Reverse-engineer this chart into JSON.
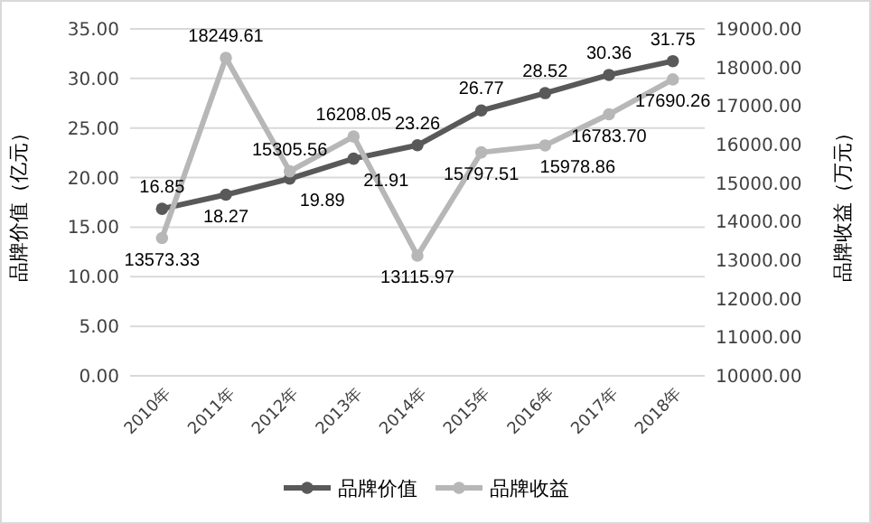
{
  "chart_data": {
    "type": "line",
    "categories": [
      "2010年",
      "2011年",
      "2012年",
      "2013年",
      "2014年",
      "2015年",
      "2016年",
      "2017年",
      "2018年"
    ],
    "series": [
      {
        "name": "品牌价值",
        "color": "#595959",
        "values": [
          16.85,
          18.27,
          19.89,
          21.91,
          23.26,
          26.77,
          28.52,
          30.36,
          31.75
        ]
      },
      {
        "name": "品牌收益",
        "color": "#b7b7b7",
        "axis": "y2",
        "values": [
          13573.33,
          18249.61,
          15305.56,
          16208.05,
          13115.97,
          15797.51,
          15978.86,
          16783.7,
          17690.26
        ],
        "value_labels": [
          "13573.33",
          "18249.61",
          "15305.56",
          "16208.05",
          "13115.97",
          "15797.51",
          "15978.86",
          "16783.70",
          "17690.26"
        ]
      }
    ],
    "ylabel": "品牌价值（亿元）",
    "y2label": "品牌收益（万元）",
    "ylim": [
      0,
      35
    ],
    "yticks": [
      {
        "value": 0,
        "label": "0.00"
      },
      {
        "value": 5,
        "label": "5.00"
      },
      {
        "value": 10,
        "label": "10.00"
      },
      {
        "value": 15,
        "label": "15.00"
      },
      {
        "value": 20,
        "label": "20.00"
      },
      {
        "value": 25,
        "label": "25.00"
      },
      {
        "value": 30,
        "label": "30.00"
      },
      {
        "value": 35,
        "label": "35.00"
      }
    ],
    "y2lim": [
      10000,
      19000
    ],
    "y2ticks": [
      {
        "value": 10000,
        "label": "10000.00"
      },
      {
        "value": 11000,
        "label": "11000.00"
      },
      {
        "value": 12000,
        "label": "12000.00"
      },
      {
        "value": 13000,
        "label": "13000.00"
      },
      {
        "value": 14000,
        "label": "14000.00"
      },
      {
        "value": 15000,
        "label": "15000.00"
      },
      {
        "value": 16000,
        "label": "16000.00"
      },
      {
        "value": 17000,
        "label": "17000.00"
      },
      {
        "value": 18000,
        "label": "18000.00"
      },
      {
        "value": 19000,
        "label": "19000.00"
      }
    ],
    "grid": "y",
    "marker": "circle",
    "line_style": "solid",
    "data_labels": true,
    "legend": "bottom"
  }
}
